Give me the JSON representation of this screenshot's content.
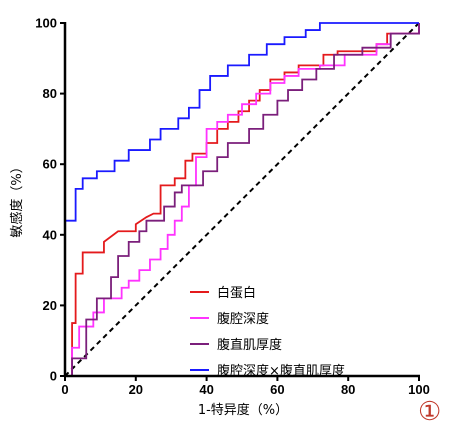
{
  "chart_data": {
    "type": "line",
    "title": "",
    "xlabel": "1-特异度（%）",
    "ylabel": "敏感度（%）",
    "xlim": [
      0,
      100
    ],
    "ylim": [
      0,
      100
    ],
    "x_ticks": [
      0,
      20,
      40,
      60,
      80,
      100
    ],
    "y_ticks": [
      0,
      20,
      40,
      60,
      80,
      100
    ],
    "grid": false,
    "legend_position": "bottom-right",
    "panel_label": "①",
    "reference_line": {
      "x": [
        0,
        100
      ],
      "y": [
        0,
        100
      ],
      "style": "dashed",
      "color": "#000000"
    },
    "series": [
      {
        "name": "白蛋白",
        "color": "#e41a1c",
        "x": [
          0,
          2,
          2,
          3,
          3,
          5,
          5,
          11,
          11,
          15,
          18,
          20,
          20,
          23,
          25,
          27,
          27,
          31,
          31,
          34,
          34,
          36,
          36,
          40,
          40,
          43,
          43,
          46,
          46,
          49,
          49,
          52,
          52,
          55,
          55,
          58,
          58,
          62,
          62,
          66,
          66,
          73,
          73,
          77,
          77,
          88,
          88,
          91,
          91,
          100,
          100
        ],
        "y": [
          0,
          0,
          15,
          15,
          29,
          29,
          35,
          35,
          38,
          41,
          41,
          41,
          43,
          45,
          46,
          46,
          54,
          54,
          56,
          56,
          61,
          61,
          63,
          63,
          66,
          66,
          70,
          70,
          72,
          72,
          75,
          75,
          78,
          78,
          81,
          81,
          84,
          84,
          86,
          86,
          88,
          88,
          91,
          91,
          92,
          92,
          94,
          94,
          97,
          97,
          100
        ]
      },
      {
        "name": "腹腔深度",
        "color": "#ff33ff",
        "x": [
          0,
          2,
          2,
          4,
          4,
          8,
          8,
          11,
          11,
          16,
          16,
          18,
          18,
          21,
          21,
          24,
          24,
          27,
          27,
          29,
          29,
          31,
          31,
          33,
          33,
          35,
          35,
          37,
          37,
          40,
          40,
          43,
          43,
          46,
          46,
          50,
          50,
          54,
          54,
          58,
          58,
          62,
          62,
          66,
          66,
          72,
          72,
          79,
          79,
          88,
          88,
          92,
          92,
          100,
          100
        ],
        "y": [
          0,
          0,
          8,
          8,
          14,
          14,
          18,
          18,
          22,
          22,
          25,
          25,
          27,
          27,
          30,
          30,
          33,
          33,
          36,
          36,
          40,
          40,
          44,
          44,
          48,
          48,
          54,
          54,
          62,
          62,
          70,
          70,
          72,
          72,
          74,
          74,
          77,
          77,
          80,
          80,
          83,
          83,
          85,
          85,
          87,
          87,
          88,
          88,
          91,
          91,
          94,
          94,
          97,
          97,
          100
        ]
      },
      {
        "name": "腹直肌厚度",
        "color": "#7b1f7b",
        "x": [
          0,
          2,
          2,
          6,
          6,
          9,
          9,
          13,
          13,
          15,
          15,
          18,
          18,
          21,
          21,
          23,
          23,
          28,
          28,
          31,
          31,
          33,
          33,
          39,
          39,
          43,
          43,
          46,
          46,
          52,
          52,
          56,
          56,
          60,
          60,
          63,
          63,
          67,
          67,
          71,
          71,
          76,
          76,
          84,
          84,
          92,
          92,
          100,
          100
        ],
        "y": [
          0,
          0,
          5,
          5,
          16,
          16,
          22,
          22,
          28,
          28,
          34,
          34,
          38,
          38,
          41,
          41,
          44,
          44,
          48,
          48,
          52,
          52,
          54,
          54,
          58,
          58,
          62,
          62,
          66,
          66,
          70,
          70,
          74,
          74,
          78,
          78,
          81,
          81,
          84,
          84,
          87,
          87,
          91,
          91,
          93,
          93,
          97,
          97,
          100
        ]
      },
      {
        "name": "腹腔深度×腹直肌厚度",
        "color": "#1a1aff",
        "x": [
          0,
          0,
          3,
          3,
          5,
          5,
          9,
          9,
          14,
          14,
          18,
          18,
          24,
          24,
          27,
          27,
          32,
          32,
          35,
          35,
          38,
          38,
          41,
          41,
          46,
          46,
          52,
          52,
          57,
          57,
          62,
          62,
          68,
          68,
          72,
          72,
          78,
          78,
          90,
          90,
          100
        ],
        "y": [
          0,
          44,
          44,
          53,
          53,
          56,
          56,
          58,
          58,
          61,
          61,
          64,
          64,
          67,
          67,
          70,
          70,
          73,
          73,
          76,
          76,
          81,
          81,
          85,
          85,
          88,
          88,
          91,
          91,
          94,
          94,
          96,
          96,
          98,
          98,
          100,
          100,
          100,
          100,
          100,
          100
        ]
      }
    ]
  }
}
